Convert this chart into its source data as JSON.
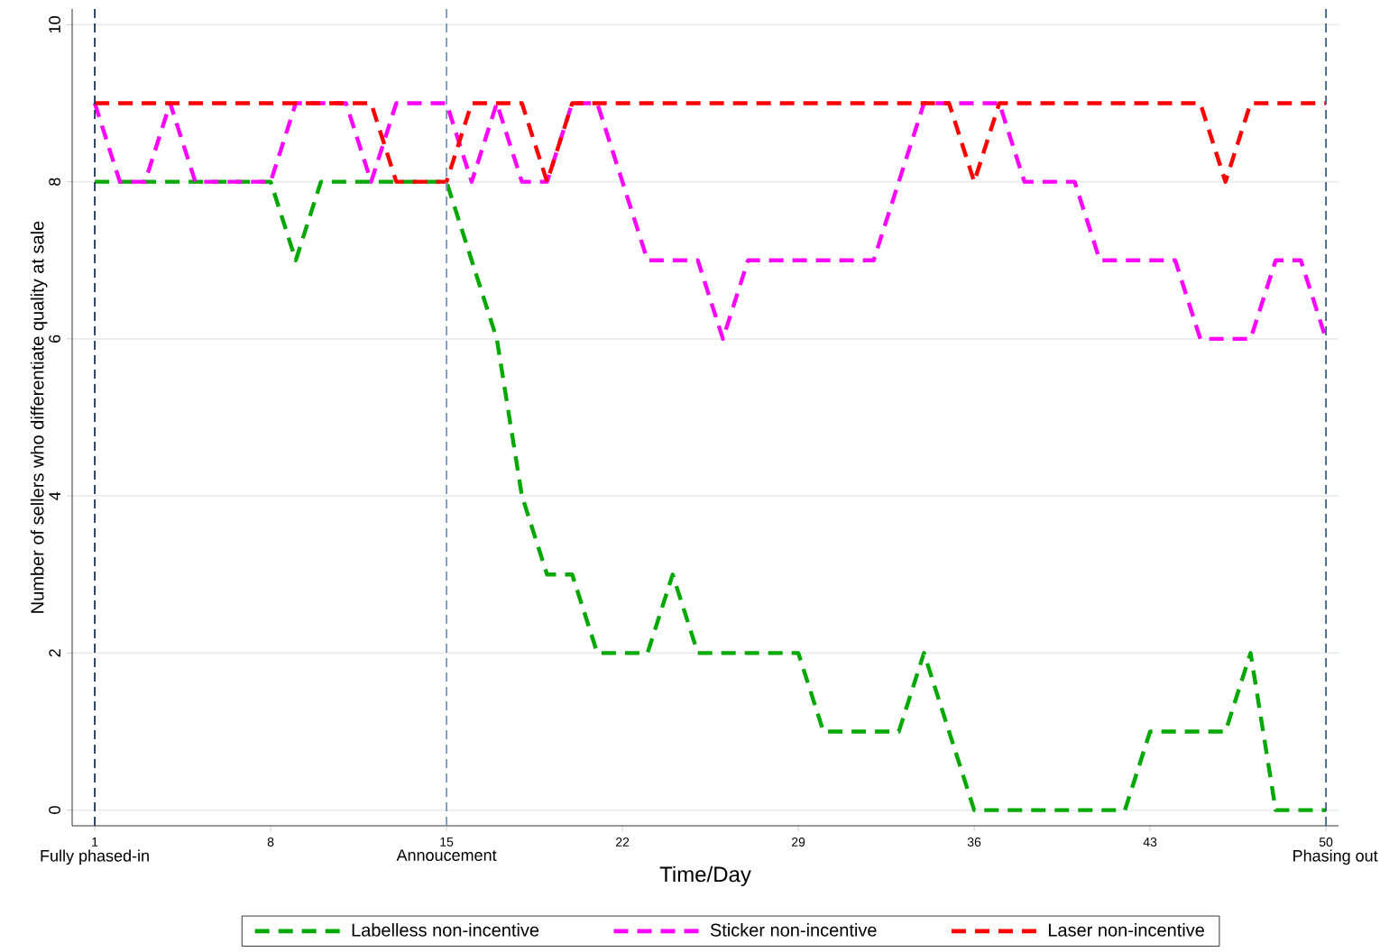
{
  "chart_data": {
    "type": "line",
    "xlabel": "Time/Day",
    "ylabel": "Number of sellers who differentiate quality at sale",
    "x": [
      1,
      2,
      3,
      4,
      5,
      6,
      7,
      8,
      9,
      10,
      11,
      12,
      13,
      14,
      15,
      16,
      17,
      18,
      19,
      20,
      21,
      22,
      23,
      24,
      25,
      26,
      27,
      28,
      29,
      30,
      31,
      32,
      33,
      34,
      35,
      36,
      37,
      38,
      39,
      40,
      41,
      42,
      43,
      44,
      45,
      46,
      47,
      48,
      49,
      50
    ],
    "series": [
      {
        "name": "Labelless non-incentive",
        "color": "#00a800",
        "values": [
          8,
          8,
          8,
          8,
          8,
          8,
          8,
          8,
          7,
          8,
          8,
          8,
          8,
          8,
          8,
          7,
          6,
          4,
          3,
          3,
          2,
          2,
          2,
          3,
          2,
          2,
          2,
          2,
          2,
          1,
          1,
          1,
          1,
          2,
          1,
          0,
          0,
          0,
          0,
          0,
          0,
          0,
          1,
          1,
          1,
          1,
          2,
          0,
          0,
          0
        ]
      },
      {
        "name": "Sticker non-incentive",
        "color": "#ff00ff",
        "values": [
          9,
          8,
          8,
          9,
          8,
          8,
          8,
          8,
          9,
          9,
          9,
          8,
          9,
          9,
          9,
          8,
          9,
          8,
          8,
          9,
          9,
          8,
          7,
          7,
          7,
          6,
          7,
          7,
          7,
          7,
          7,
          7,
          8,
          9,
          9,
          9,
          9,
          8,
          8,
          8,
          7,
          7,
          7,
          7,
          6,
          6,
          6,
          7,
          7,
          6
        ]
      },
      {
        "name": "Laser non-incentive",
        "color": "#ff0000",
        "values": [
          9,
          9,
          9,
          9,
          9,
          9,
          9,
          9,
          9,
          9,
          9,
          9,
          8,
          8,
          8,
          9,
          9,
          9,
          8,
          9,
          9,
          9,
          9,
          9,
          9,
          9,
          9,
          9,
          9,
          9,
          9,
          9,
          9,
          9,
          9,
          8,
          9,
          9,
          9,
          9,
          9,
          9,
          9,
          9,
          9,
          8,
          9,
          9,
          9,
          9
        ]
      }
    ],
    "xlim": [
      0.1,
      50.5
    ],
    "ylim": [
      -0.2,
      10.2
    ],
    "xticks": [
      1,
      8,
      15,
      22,
      29,
      36,
      43,
      50
    ],
    "yticks": [
      0,
      2,
      4,
      6,
      8,
      10
    ],
    "ref_lines": [
      {
        "axis": "x",
        "value": 1,
        "label": "Fully phased-in",
        "color": "#1f3550",
        "line_style": "dashed"
      },
      {
        "axis": "x",
        "value": 15,
        "label": "Annoucement",
        "color": "#7f95ad",
        "line_style": "dashed"
      },
      {
        "axis": "x",
        "value": 50,
        "label": "Phasing out",
        "color": "#3e6286",
        "line_style": "dashed"
      }
    ],
    "grid": "y",
    "legend": "bottom",
    "marker": "none",
    "line_style": "dashed"
  }
}
